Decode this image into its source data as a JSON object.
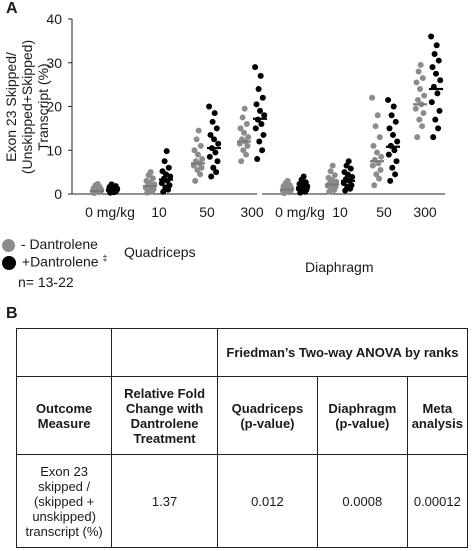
{
  "panel_a_label": "A",
  "panel_b_label": "B",
  "chart_data": {
    "type": "scatter",
    "ylabel": "Exon 23 Skipped/ (Unskipped+Skipped) Transcript (%)",
    "ylim": [
      0,
      40
    ],
    "yticks": [
      0,
      10,
      20,
      30,
      40
    ],
    "groups": [
      "Quadriceps",
      "Diaphragm"
    ],
    "dose_labels": [
      "0 mg/kg",
      "10",
      "50",
      "300"
    ],
    "series": [
      {
        "name": "- Dantrolene",
        "color": "#8c8c8c"
      },
      {
        "name": "+Dantrolene",
        "color": "#000000"
      }
    ],
    "data": {
      "Quadriceps": [
        {
          "dose": "0 mg/kg",
          "minus": {
            "mean": 0.7,
            "values": [
              0.2,
              0.4,
              0.5,
              0.6,
              0.7,
              0.8,
              0.9,
              1.0,
              1.1,
              1.3,
              1.6,
              2.0,
              2.3
            ]
          },
          "plus": {
            "mean": 1.0,
            "values": [
              0.3,
              0.5,
              0.6,
              0.8,
              0.9,
              1.0,
              1.1,
              1.2,
              1.4,
              1.6,
              1.8,
              2.2,
              0.4
            ]
          }
        },
        {
          "dose": "10",
          "minus": {
            "mean": 1.8,
            "values": [
              0.3,
              0.6,
              0.9,
              1.1,
              1.4,
              1.6,
              1.9,
              2.2,
              2.6,
              3.0,
              3.6,
              4.3,
              5.0
            ]
          },
          "plus": {
            "mean": 3.3,
            "values": [
              0.5,
              1.0,
              1.5,
              2.0,
              2.5,
              3.0,
              3.5,
              4.0,
              4.5,
              5.2,
              6.0,
              7.5,
              9.8
            ]
          }
        },
        {
          "dose": "50",
          "minus": {
            "mean": 7.0,
            "values": [
              3.0,
              4.5,
              5.5,
              6.0,
              6.5,
              7.0,
              7.5,
              8.0,
              9.0,
              10.0,
              11.0,
              12.5,
              14.5
            ]
          },
          "plus": {
            "mean": 10.5,
            "values": [
              4.0,
              5.0,
              6.0,
              7.5,
              8.5,
              9.5,
              10.5,
              11.5,
              12.5,
              13.5,
              15.0,
              16.5,
              18.5,
              20.0
            ]
          }
        },
        {
          "dose": "300",
          "minus": {
            "mean": 12.0,
            "values": [
              7.5,
              9.0,
              10.0,
              11.0,
              11.5,
              12.0,
              12.5,
              13.0,
              14.0,
              15.0,
              16.0,
              17.5,
              19.5
            ]
          },
          "plus": {
            "mean": 17.2,
            "values": [
              8.0,
              10.0,
              12.0,
              13.5,
              15.0,
              16.0,
              17.0,
              18.0,
              19.0,
              20.5,
              22.0,
              24.0,
              27.0,
              29.0
            ]
          }
        }
      ],
      "Diaphragm": [
        {
          "dose": "0 mg/kg",
          "minus": {
            "mean": 1.0,
            "values": [
              0.2,
              0.4,
              0.6,
              0.7,
              0.8,
              1.0,
              1.1,
              1.3,
              1.5,
              1.8,
              2.0,
              2.5,
              3.0
            ]
          },
          "plus": {
            "mean": 1.5,
            "values": [
              0.3,
              0.5,
              0.8,
              1.0,
              1.2,
              1.4,
              1.6,
              1.8,
              2.0,
              2.3,
              2.7,
              3.3,
              4.0
            ]
          }
        },
        {
          "dose": "10",
          "minus": {
            "mean": 2.2,
            "values": [
              0.5,
              0.9,
              1.3,
              1.6,
              1.9,
              2.2,
              2.5,
              2.8,
              3.2,
              3.7,
              4.3,
              5.2,
              6.5
            ]
          },
          "plus": {
            "mean": 3.0,
            "values": [
              0.8,
              1.2,
              1.6,
              2.0,
              2.5,
              3.0,
              3.4,
              3.9,
              4.4,
              5.0,
              5.8,
              6.5,
              7.5
            ]
          }
        },
        {
          "dose": "50",
          "minus": {
            "mean": 7.5,
            "values": [
              2.0,
              3.5,
              4.5,
              5.5,
              6.5,
              7.0,
              7.8,
              8.5,
              9.5,
              11.0,
              13.0,
              15.5,
              18.0,
              22.0
            ]
          },
          "plus": {
            "mean": 10.8,
            "values": [
              3.0,
              4.5,
              6.0,
              7.5,
              9.0,
              10.0,
              11.0,
              12.0,
              13.5,
              15.0,
              16.5,
              18.0,
              20.0,
              21.5
            ]
          }
        },
        {
          "dose": "300",
          "minus": {
            "mean": 20.5,
            "values": [
              13.0,
              15.5,
              17.0,
              18.5,
              19.5,
              20.5,
              21.5,
              22.5,
              24.0,
              25.5,
              26.5,
              28.0,
              29.5
            ]
          },
          "plus": {
            "mean": 24.0,
            "values": [
              13.0,
              15.0,
              17.0,
              19.0,
              21.0,
              23.0,
              24.5,
              26.0,
              27.5,
              29.0,
              30.5,
              32.0,
              34.0,
              36.0
            ]
          }
        }
      ]
    }
  },
  "legend": {
    "minus_label": "- Dantrolene",
    "plus_label": "+Dantrolene",
    "plus_mark": "‡",
    "n_label": "n= 13-22",
    "minus_color": "#8c8c8c",
    "plus_color": "#000000"
  },
  "muscles": {
    "quadriceps": "Quadriceps",
    "diaphragm": "Diaphragm"
  },
  "table": {
    "friedman_header": "Friedman’s Two-way ANOVA by ranks",
    "col_outcome": "Outcome Measure",
    "col_fold": "Relative Fold Change with Dantrolene Treatment",
    "col_quad": "Quadriceps (p-value)",
    "col_dia": "Diaphragm (p-value)",
    "col_meta": "Meta analysis",
    "row_outcome": "Exon 23 skipped / (skipped + unskipped) transcript (%)",
    "row_fold": "1.37",
    "row_quad": "0.012",
    "row_dia": "0.0008",
    "row_meta": "0.00012"
  }
}
